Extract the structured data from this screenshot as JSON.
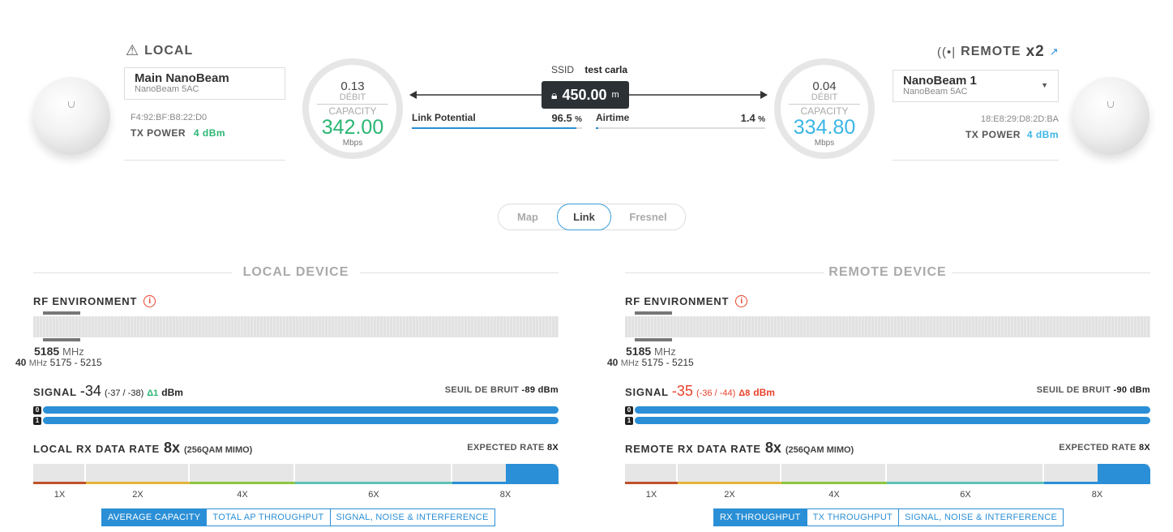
{
  "local": {
    "header": "LOCAL",
    "device_name": "Main NanoBeam",
    "device_model": "NanoBeam 5AC",
    "mac": "F4:92:BF:B8:22:D0",
    "tx_power_label": "TX POWER",
    "tx_power_value": "4 dBm",
    "rx_top": "0.13",
    "debit_label": "DÉBIT",
    "capacity_label": "CAPACITY",
    "capacity_value": "342.00",
    "unit": "Mbps"
  },
  "remote": {
    "header": "REMOTE",
    "count": "x2",
    "device_name": "NanoBeam 1",
    "device_model": "NanoBeam 5AC",
    "mac": "18:E8:29:D8:2D:BA",
    "tx_power_label": "TX POWER",
    "tx_power_value": "4 dBm",
    "rx_top": "0.04",
    "debit_label": "DÉBIT",
    "capacity_label": "CAPACITY",
    "capacity_value": "334.80",
    "unit": "Mbps"
  },
  "link": {
    "ssid_label": "SSID",
    "ssid_value": "test carla",
    "distance": "450.00",
    "distance_unit": "m",
    "link_potential_label": "Link Potential",
    "link_potential_value": "96.5",
    "airtime_label": "Airtime",
    "airtime_value": "1.4",
    "pct": "%",
    "link_potential_fraction": 0.965,
    "airtime_fraction": 0.014
  },
  "tabs": [
    "Map",
    "Link",
    "Fresnel"
  ],
  "active_tab": "Link",
  "local_panel": {
    "title": "LOCAL DEVICE",
    "rf_label": "RF ENVIRONMENT",
    "freq": "5185",
    "freq_unit": "MHz",
    "width": "40",
    "width_unit": "MHz",
    "range": "5175 - 5215",
    "signal_label": "SIGNAL",
    "signal_value": "-34",
    "signal_chains": "(-37 / -38)",
    "signal_delta": "Δ1",
    "signal_unit": "dBm",
    "noise_label": "SEUIL DE BRUIT",
    "noise_value": "-89 dBm",
    "rate_label": "LOCAL RX DATA RATE",
    "rate_value": "8x",
    "rate_detail": "(256QAM MIMO)",
    "expected_label": "EXPECTED RATE",
    "expected_value": "8X",
    "rate_ticks": [
      "1X",
      "2X",
      "4X",
      "6X",
      "8X"
    ],
    "buttons": [
      "AVERAGE CAPACITY",
      "TOTAL AP THROUGHPUT",
      "SIGNAL, NOISE & INTERFERENCE"
    ],
    "chain0": "0",
    "chain1": "1"
  },
  "remote_panel": {
    "title": "REMOTE DEVICE",
    "rf_label": "RF ENVIRONMENT",
    "freq": "5185",
    "freq_unit": "MHz",
    "width": "40",
    "width_unit": "MHz",
    "range": "5175 - 5215",
    "signal_label": "SIGNAL",
    "signal_value": "-35",
    "signal_chains": "(-36 / -44)",
    "signal_delta": "Δ8",
    "signal_unit": "dBm",
    "noise_label": "SEUIL DE BRUIT",
    "noise_value": "-90 dBm",
    "rate_label": "REMOTE RX DATA RATE",
    "rate_value": "8x",
    "rate_detail": "(256QAM MIMO)",
    "expected_label": "EXPECTED RATE",
    "expected_value": "8X",
    "rate_ticks": [
      "1X",
      "2X",
      "4X",
      "6X",
      "8X"
    ],
    "buttons": [
      "RX THROUGHPUT",
      "TX THROUGHPUT",
      "SIGNAL, NOISE & INTERFERENCE"
    ],
    "chain0": "0",
    "chain1": "1"
  },
  "colors": {
    "green": "#2bb673",
    "blue": "#2a8fd6",
    "cyan": "#3bb6e6",
    "red": "#e8412c",
    "rate_1x": "#c0512b",
    "rate_2x": "#e3b43a",
    "rate_4x": "#8cc63f",
    "rate_6x": "#5fc2b5",
    "rate_8x": "#2a8fd6"
  }
}
